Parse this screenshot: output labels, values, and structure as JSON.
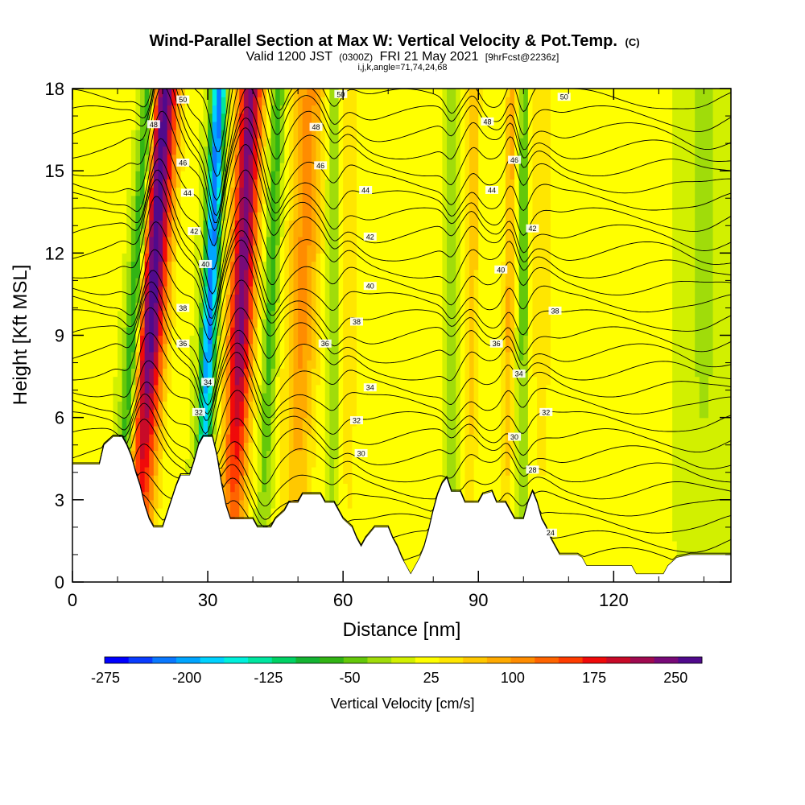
{
  "chart_data": {
    "type": "heatmap",
    "title": "Wind-Parallel Section at Max W: Vertical Velocity & Pot.Temp.",
    "title_mark": "(C)",
    "subtitle_line1_a": "Valid 1200 JST",
    "subtitle_line1_b": "(0300Z)",
    "subtitle_line1_c": "FRI 21 May 2021",
    "subtitle_line1_d": "[9hrFcst@2236z]",
    "subtitle_line2": "i,j,k,angle=71,74,24,68",
    "xlabel": "Distance [nm]",
    "ylabel": "Height [Kft MSL]",
    "xlim": [
      0,
      146
    ],
    "ylim": [
      0,
      18
    ],
    "x_ticks": [
      "0",
      "30",
      "60",
      "90",
      "120"
    ],
    "x_tick_values": [
      0,
      30,
      60,
      90,
      120
    ],
    "y_ticks": [
      "0",
      "3",
      "6",
      "9",
      "12",
      "15",
      "18"
    ],
    "y_tick_values": [
      0,
      3,
      6,
      9,
      12,
      15,
      18
    ],
    "colorbar": {
      "label": "Vertical Velocity [cm/s]",
      "min": -275,
      "max": 275,
      "tick_labels": [
        "-275",
        "-200",
        "-125",
        "-50",
        "25",
        "100",
        "175",
        "250"
      ],
      "tick_values": [
        -275,
        -200,
        -125,
        -50,
        25,
        100,
        175,
        250
      ],
      "colors": [
        "#0000ff",
        "#0a3cff",
        "#0a78ff",
        "#00a5ff",
        "#00d2ff",
        "#00f0dc",
        "#00e6a0",
        "#00d264",
        "#14b432",
        "#32b414",
        "#64c80a",
        "#a0dc0a",
        "#d2f000",
        "#ffff00",
        "#ffe600",
        "#ffc800",
        "#ffaa00",
        "#ff8c00",
        "#ff6400",
        "#ff3c00",
        "#f00a0a",
        "#c80a28",
        "#a00a50",
        "#780a78",
        "#500a8c"
      ]
    },
    "contour_field": "Potential Temperature",
    "contour_levels": [
      24,
      26,
      28,
      30,
      32,
      34,
      36,
      38,
      40,
      42,
      44,
      46,
      48,
      50
    ],
    "contour_labels": [
      {
        "text": "48",
        "x": 18,
        "y": 16.7
      },
      {
        "text": "50",
        "x": 24.5,
        "y": 17.6
      },
      {
        "text": "46",
        "x": 24.5,
        "y": 15.3
      },
      {
        "text": "44",
        "x": 25.5,
        "y": 14.2
      },
      {
        "text": "42",
        "x": 27,
        "y": 12.8
      },
      {
        "text": "40",
        "x": 29.5,
        "y": 11.6
      },
      {
        "text": "38",
        "x": 24.5,
        "y": 10.0
      },
      {
        "text": "36",
        "x": 24.5,
        "y": 8.7
      },
      {
        "text": "34",
        "x": 30,
        "y": 7.3
      },
      {
        "text": "32",
        "x": 28,
        "y": 6.2
      },
      {
        "text": "50",
        "x": 59.5,
        "y": 17.8
      },
      {
        "text": "48",
        "x": 54,
        "y": 16.6
      },
      {
        "text": "46",
        "x": 55,
        "y": 15.2
      },
      {
        "text": "44",
        "x": 65,
        "y": 14.3
      },
      {
        "text": "42",
        "x": 66,
        "y": 12.6
      },
      {
        "text": "40",
        "x": 66,
        "y": 10.8
      },
      {
        "text": "38",
        "x": 63,
        "y": 9.5
      },
      {
        "text": "36",
        "x": 56,
        "y": 8.7
      },
      {
        "text": "34",
        "x": 66,
        "y": 7.1
      },
      {
        "text": "32",
        "x": 63,
        "y": 5.9
      },
      {
        "text": "30",
        "x": 64,
        "y": 4.7
      },
      {
        "text": "50",
        "x": 109,
        "y": 17.7
      },
      {
        "text": "48",
        "x": 92,
        "y": 16.8
      },
      {
        "text": "46",
        "x": 98,
        "y": 15.4
      },
      {
        "text": "44",
        "x": 93,
        "y": 14.3
      },
      {
        "text": "42",
        "x": 102,
        "y": 12.9
      },
      {
        "text": "40",
        "x": 95,
        "y": 11.4
      },
      {
        "text": "38",
        "x": 107,
        "y": 9.9
      },
      {
        "text": "36",
        "x": 94,
        "y": 8.7
      },
      {
        "text": "34",
        "x": 99,
        "y": 7.6
      },
      {
        "text": "32",
        "x": 105,
        "y": 6.2
      },
      {
        "text": "30",
        "x": 98,
        "y": 5.3
      },
      {
        "text": "28",
        "x": 102,
        "y": 4.1
      },
      {
        "text": "24",
        "x": 106,
        "y": 1.8
      }
    ],
    "updrafts": [
      {
        "x": 14,
        "tilt": 0.35,
        "amp": 260,
        "w": 3.3
      },
      {
        "x": 35,
        "tilt": 0.25,
        "amp": 230,
        "w": 2.8
      },
      {
        "x": 49,
        "tilt": 0.2,
        "amp": 95,
        "w": 3.5
      },
      {
        "x": 88,
        "tilt": 0.05,
        "amp": 60,
        "w": 1.6
      },
      {
        "x": 96,
        "tilt": 0.08,
        "amp": 70,
        "w": 1.3
      },
      {
        "x": 61,
        "tilt": 0.0,
        "amp": 40,
        "w": 2.5
      },
      {
        "x": 104,
        "tilt": 0.0,
        "amp": 35,
        "w": 2.5
      }
    ],
    "downdrafts": [
      {
        "x": 10,
        "tilt": 0.4,
        "amp": -160,
        "w": 1.8
      },
      {
        "x": 28,
        "tilt": 0.25,
        "amp": -240,
        "w": 1.6
      },
      {
        "x": 42,
        "tilt": 0.2,
        "amp": -80,
        "w": 1.5
      },
      {
        "x": 58,
        "tilt": 0.0,
        "amp": -55,
        "w": 1.5
      },
      {
        "x": 84,
        "tilt": 0.0,
        "amp": -50,
        "w": 1.2
      },
      {
        "x": 100,
        "tilt": 0.0,
        "amp": -60,
        "w": 1.2
      },
      {
        "x": 140,
        "tilt": 0.0,
        "amp": -30,
        "w": 4
      }
    ],
    "terrain": [
      [
        0,
        4.3
      ],
      [
        4,
        4.3
      ],
      [
        6,
        4.3
      ],
      [
        7,
        5.0
      ],
      [
        9,
        5.3
      ],
      [
        11,
        5.3
      ],
      [
        12,
        5.0
      ],
      [
        13,
        4.6
      ],
      [
        14,
        4.0
      ],
      [
        15,
        3.5
      ],
      [
        16,
        2.8
      ],
      [
        17,
        2.3
      ],
      [
        18,
        2.0
      ],
      [
        20,
        2.0
      ],
      [
        21,
        2.5
      ],
      [
        22,
        3.0
      ],
      [
        23,
        3.5
      ],
      [
        24,
        3.9
      ],
      [
        26,
        3.9
      ],
      [
        27,
        4.4
      ],
      [
        28,
        5.0
      ],
      [
        29,
        5.3
      ],
      [
        31,
        5.3
      ],
      [
        32,
        4.6
      ],
      [
        33,
        3.6
      ],
      [
        34,
        2.8
      ],
      [
        35,
        2.3
      ],
      [
        40,
        2.3
      ],
      [
        41,
        2.0
      ],
      [
        44,
        2.0
      ],
      [
        45,
        2.3
      ],
      [
        47,
        2.6
      ],
      [
        48,
        2.9
      ],
      [
        50,
        2.9
      ],
      [
        51,
        3.2
      ],
      [
        55,
        3.2
      ],
      [
        56,
        2.9
      ],
      [
        58,
        2.9
      ],
      [
        59,
        2.6
      ],
      [
        60,
        2.3
      ],
      [
        62,
        2.0
      ],
      [
        63,
        1.6
      ],
      [
        64,
        1.3
      ],
      [
        65,
        1.6
      ],
      [
        67,
        2.0
      ],
      [
        70,
        2.0
      ],
      [
        71,
        1.6
      ],
      [
        72,
        1.3
      ],
      [
        73,
        0.9
      ],
      [
        74,
        0.6
      ],
      [
        75,
        0.3
      ],
      [
        76,
        0.6
      ],
      [
        77,
        0.9
      ],
      [
        78,
        1.3
      ],
      [
        79,
        1.9
      ],
      [
        80,
        2.6
      ],
      [
        81,
        3.2
      ],
      [
        82,
        3.6
      ],
      [
        83,
        3.8
      ],
      [
        84,
        3.3
      ],
      [
        86,
        3.3
      ],
      [
        87,
        2.9
      ],
      [
        90,
        2.9
      ],
      [
        91,
        3.2
      ],
      [
        93,
        3.3
      ],
      [
        94,
        2.9
      ],
      [
        96,
        2.9
      ],
      [
        97,
        2.6
      ],
      [
        98,
        2.3
      ],
      [
        100,
        2.3
      ],
      [
        101,
        2.9
      ],
      [
        102,
        3.3
      ],
      [
        103,
        2.9
      ],
      [
        104,
        2.3
      ],
      [
        105,
        2.0
      ],
      [
        106,
        1.6
      ],
      [
        107,
        1.3
      ],
      [
        108,
        1.0
      ],
      [
        112,
        1.0
      ],
      [
        113,
        0.9
      ],
      [
        114,
        0.6
      ],
      [
        124,
        0.6
      ],
      [
        125,
        0.3
      ],
      [
        131,
        0.3
      ],
      [
        132,
        0.6
      ],
      [
        134,
        0.9
      ],
      [
        137,
        1.0
      ],
      [
        146,
        1.0
      ]
    ]
  }
}
